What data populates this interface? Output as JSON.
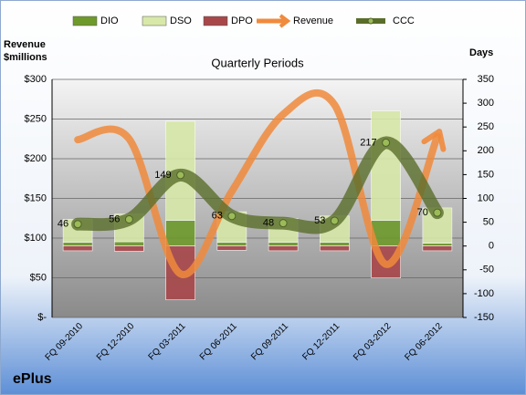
{
  "chart_data": {
    "type": "combo",
    "title": "Quarterly Periods",
    "footer": "ePlus",
    "y_label": "Revenue $millions",
    "y2_label": "Days",
    "categories": [
      "FQ 09-2010",
      "FQ 12-2010",
      "FQ 03-2011",
      "FQ 06-2011",
      "FQ 09-2011",
      "FQ 12-2011",
      "FQ 03-2012",
      "FQ 06-2012"
    ],
    "series": [
      {
        "name": "DIO",
        "type": "bar",
        "axis": "y2",
        "color": "#6e9a2c",
        "values": [
          8,
          9,
          54,
          8,
          8,
          8,
          54,
          6
        ]
      },
      {
        "name": "DSO",
        "type": "bar",
        "axis": "y2",
        "color": "#d7e8a8",
        "values": [
          48,
          58,
          208,
          64,
          50,
          55,
          230,
          74
        ]
      },
      {
        "name": "DPO",
        "type": "bar",
        "axis": "y2",
        "color": "#a8474a",
        "values": [
          -10,
          -11,
          -113,
          -9,
          -10,
          -10,
          -67,
          -10
        ]
      },
      {
        "name": "Revenue",
        "type": "arrow-line",
        "color": "#f08a3c",
        "values": [
          224,
          225,
          55,
          159,
          256,
          268,
          67,
          228
        ]
      },
      {
        "name": "CCC",
        "type": "line",
        "axis": "y2",
        "color": "#5a6e2a",
        "values": [
          46,
          56,
          149,
          63,
          48,
          53,
          217,
          70
        ]
      }
    ],
    "ylim": [
      0,
      300
    ],
    "yticks": [
      {
        "value": 0,
        "label": "$-"
      },
      {
        "value": 50,
        "label": "$50"
      },
      {
        "value": 100,
        "label": "$100"
      },
      {
        "value": 150,
        "label": "$150"
      },
      {
        "value": 200,
        "label": "$200"
      },
      {
        "value": 250,
        "label": "$250"
      },
      {
        "value": 300,
        "label": "$300"
      }
    ],
    "y2lim": [
      -150,
      350
    ],
    "y2ticks": [
      -150,
      -100,
      -50,
      0,
      50,
      100,
      150,
      200,
      250,
      300,
      350
    ],
    "grid": true
  }
}
